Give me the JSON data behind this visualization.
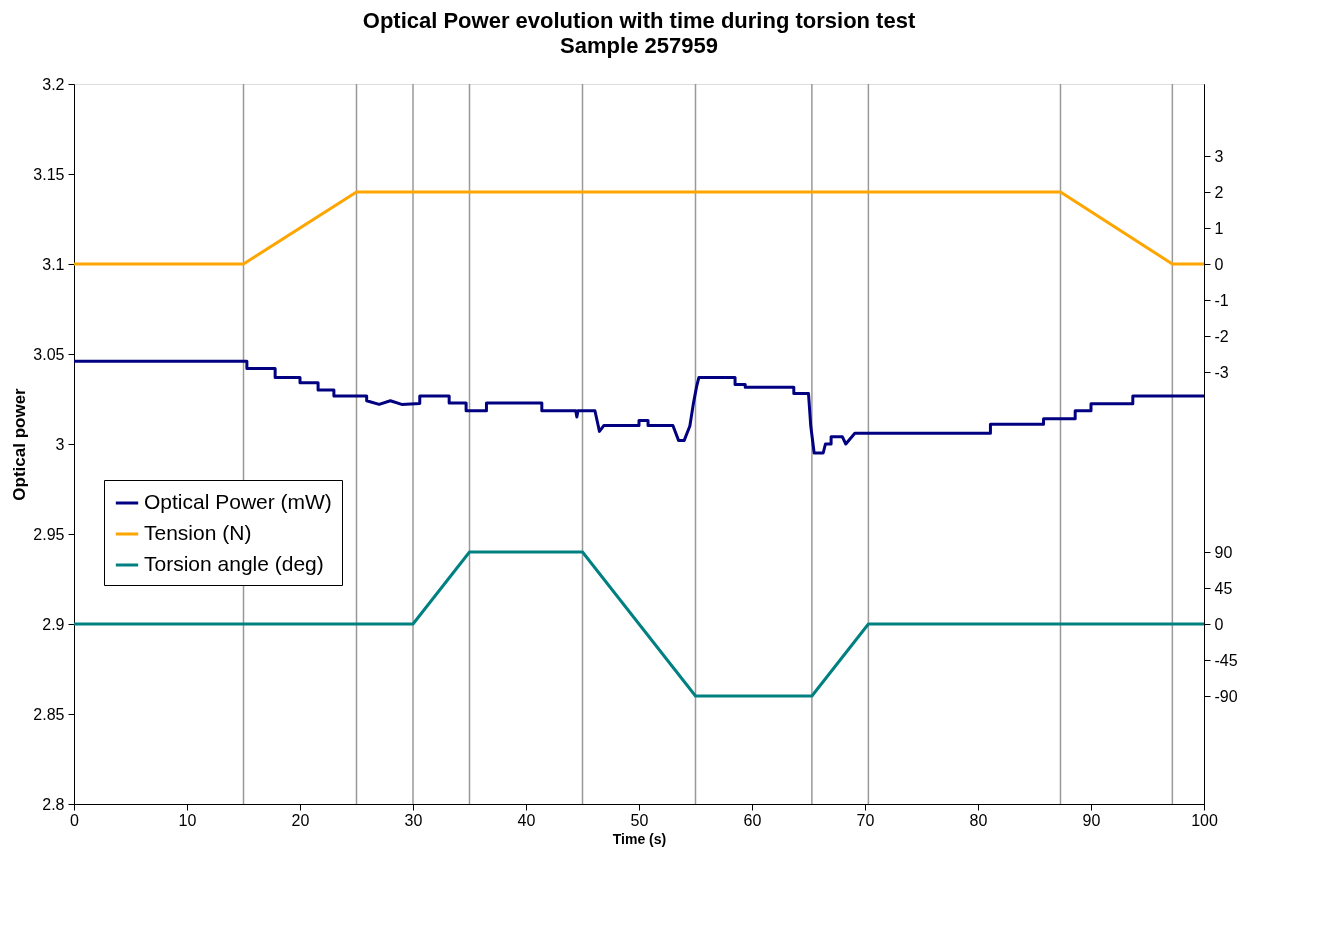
{
  "chart_data": {
    "type": "line",
    "title": "Optical Power evolution with time during torsion test",
    "subtitle": "Sample 257959",
    "xlabel": "Time (s)",
    "ylabel": "Optical power",
    "xlim": [
      0,
      100
    ],
    "xticks": [
      0,
      10,
      20,
      30,
      40,
      50,
      60,
      70,
      80,
      90,
      100
    ],
    "ylim": [
      2.8,
      3.2
    ],
    "yticks": [
      2.8,
      2.85,
      2.9,
      2.95,
      3,
      3.05,
      3.1,
      3.15,
      3.2
    ],
    "y2lim": [
      -15,
      5
    ],
    "y2ticks": [
      -3,
      -2,
      -1,
      0,
      1,
      2,
      3
    ],
    "y3lim": [
      -225,
      675
    ],
    "y3ticks": [
      -90,
      -45,
      0,
      45,
      90
    ],
    "grid": false,
    "legend": "left",
    "line_style": "solid",
    "marker": "none",
    "ref_lines": [
      {
        "axis": "x",
        "value": 15,
        "color": "#999999"
      },
      {
        "axis": "x",
        "value": 25,
        "color": "#999999"
      },
      {
        "axis": "x",
        "value": 30,
        "color": "#999999"
      },
      {
        "axis": "x",
        "value": 35,
        "color": "#999999"
      },
      {
        "axis": "x",
        "value": 45,
        "color": "#999999"
      },
      {
        "axis": "x",
        "value": 55,
        "color": "#999999"
      },
      {
        "axis": "x",
        "value": 65.3,
        "color": "#999999"
      },
      {
        "axis": "x",
        "value": 70.3,
        "color": "#999999"
      },
      {
        "axis": "x",
        "value": 87.3,
        "color": "#999999"
      },
      {
        "axis": "x",
        "value": 97.2,
        "color": "#999999"
      }
    ],
    "series": [
      {
        "name": "Optical Power (mW)",
        "color": "#000080",
        "x": [
          0,
          15.3,
          15.3,
          17.8,
          17.8,
          20,
          20,
          21.6,
          21.6,
          23,
          23,
          25.9,
          25.9,
          27,
          28,
          29,
          30.6,
          30.6,
          33.2,
          33.2,
          34.7,
          34.7,
          36.5,
          36.5,
          41.4,
          41.4,
          44.4,
          44.5,
          44.6,
          46.1,
          46.5,
          46.9,
          50,
          50,
          50.8,
          50.8,
          53,
          53.5,
          54,
          54.5,
          54.8,
          55.1,
          55.3,
          58.5,
          58.5,
          59.4,
          59.4,
          63.7,
          63.7,
          65,
          65.2,
          65.5,
          66.3,
          66.5,
          67,
          67,
          68,
          68.3,
          69.1,
          81.1,
          81.1,
          85.8,
          85.8,
          88.6,
          88.6,
          90,
          90,
          93.7,
          93.7,
          100
        ],
        "values": [
          3.046,
          3.046,
          3.042,
          3.042,
          3.037,
          3.037,
          3.034,
          3.034,
          3.03,
          3.03,
          3.0266,
          3.0266,
          3.024,
          3.022,
          3.024,
          3.022,
          3.0225,
          3.0266,
          3.0266,
          3.0228,
          3.0228,
          3.0185,
          3.0185,
          3.0228,
          3.0228,
          3.0185,
          3.0185,
          3.015,
          3.0185,
          3.0185,
          3.007,
          3.0103,
          3.0103,
          3.013,
          3.013,
          3.0103,
          3.0103,
          3.002,
          3.002,
          3.01,
          3.022,
          3.032,
          3.037,
          3.037,
          3.033,
          3.033,
          3.0315,
          3.0315,
          3.028,
          3.028,
          3.01,
          2.995,
          2.995,
          3.0,
          3.0,
          3.004,
          3.004,
          3.0,
          3.006,
          3.006,
          3.011,
          3.011,
          3.014,
          3.014,
          3.0185,
          3.0185,
          3.0223,
          3.0223,
          3.0266,
          3.0266
        ]
      },
      {
        "name": "Tension (N)",
        "color": "#ffa500",
        "axis": "y2",
        "x": [
          0,
          15,
          25,
          87.3,
          97.2,
          100
        ],
        "values": [
          0,
          0,
          2,
          2,
          0,
          0
        ]
      },
      {
        "name": "Torsion angle (deg)",
        "color": "#008080",
        "axis": "y3",
        "x": [
          0,
          30,
          35,
          45,
          55,
          65.3,
          70.3,
          100
        ],
        "values": [
          0,
          0,
          90,
          90,
          -90,
          -90,
          0,
          0
        ]
      }
    ]
  }
}
